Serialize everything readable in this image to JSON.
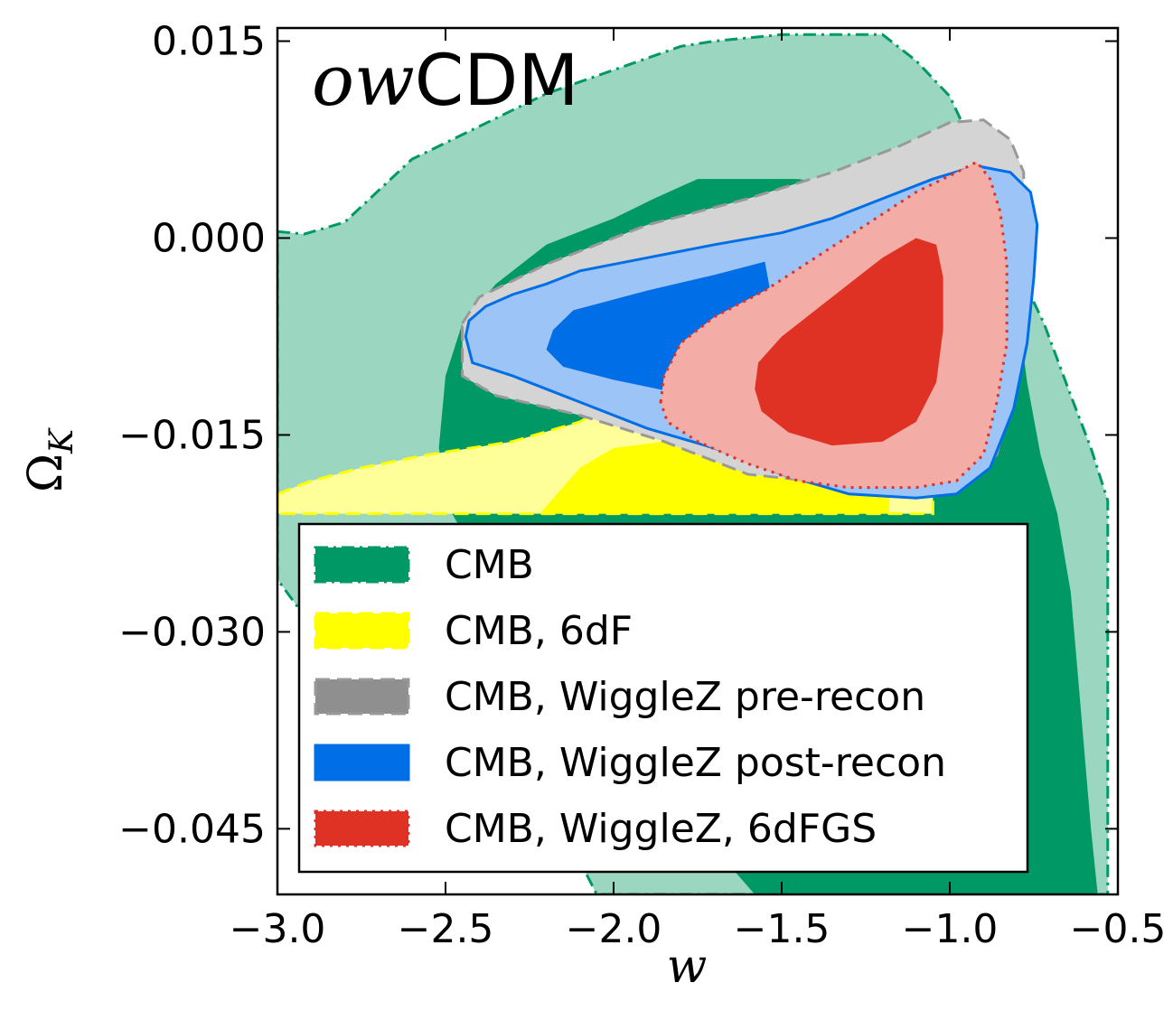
{
  "chart_data": {
    "type": "contour",
    "title_italic": "ow",
    "title_rest": "CDM",
    "xlabel": "w",
    "ylabel_main": "Ω",
    "ylabel_sub": "K",
    "xlim": [
      -3.0,
      -0.5
    ],
    "ylim": [
      -0.05,
      0.016
    ],
    "x_ticks": [
      -3.0,
      -2.5,
      -2.0,
      -1.5,
      -1.0,
      -0.5
    ],
    "x_tick_labels": [
      "−3.0",
      "−2.5",
      "−2.0",
      "−1.5",
      "−1.0",
      "−0.5"
    ],
    "y_ticks": [
      0.015,
      0.0,
      -0.015,
      -0.03,
      -0.045
    ],
    "y_tick_labels": [
      "0.015",
      "0.000",
      "−0.015",
      "−0.030",
      "−0.045"
    ],
    "grid": false,
    "legend_position": "lower-center",
    "series": [
      {
        "name": "CMB",
        "fill_outer": "#9bd6c1",
        "fill_inner": "#009966",
        "edge": "#009966",
        "linestyle": "dashdot",
        "outer": [
          [
            -3.0,
            0.0005
          ],
          [
            -2.92,
            0.0003
          ],
          [
            -2.8,
            0.0012
          ],
          [
            -2.6,
            0.006
          ],
          [
            -2.4,
            0.0085
          ],
          [
            -2.2,
            0.011
          ],
          [
            -2.0,
            0.0128
          ],
          [
            -1.8,
            0.0146
          ],
          [
            -1.7,
            0.015
          ],
          [
            -1.5,
            0.0155
          ],
          [
            -1.3,
            0.0155
          ],
          [
            -1.2,
            0.0155
          ],
          [
            -1.1,
            0.0135
          ],
          [
            -1.0,
            0.0108
          ],
          [
            -0.9,
            0.0053
          ],
          [
            -0.86,
            0.003
          ],
          [
            -0.8,
            -0.0022
          ],
          [
            -0.72,
            -0.0065
          ],
          [
            -0.64,
            -0.012
          ],
          [
            -0.58,
            -0.016
          ],
          [
            -0.53,
            -0.02
          ],
          [
            -0.53,
            -0.05
          ],
          [
            -2.05,
            -0.05
          ],
          [
            -2.1,
            -0.0475
          ],
          [
            -2.45,
            -0.0415
          ],
          [
            -2.8,
            -0.033
          ],
          [
            -3.0,
            -0.026
          ]
        ],
        "inner": [
          [
            -2.5,
            -0.0105
          ],
          [
            -2.45,
            -0.0065
          ],
          [
            -2.35,
            -0.0035
          ],
          [
            -2.2,
            -0.0005
          ],
          [
            -2.0,
            0.0015
          ],
          [
            -1.88,
            0.003
          ],
          [
            -1.75,
            0.0045
          ],
          [
            -1.6,
            0.0045
          ],
          [
            -1.45,
            0.0045
          ],
          [
            -1.3,
            0.0038
          ],
          [
            -1.15,
            0.0045
          ],
          [
            -1.0,
            0.0045
          ],
          [
            -0.9,
            0.0035
          ],
          [
            -0.83,
            0.001
          ],
          [
            -0.8,
            -0.005
          ],
          [
            -0.77,
            -0.011
          ],
          [
            -0.73,
            -0.0165
          ],
          [
            -0.68,
            -0.021
          ],
          [
            -0.64,
            -0.027
          ],
          [
            -0.62,
            -0.033
          ],
          [
            -0.6,
            -0.039
          ],
          [
            -0.58,
            -0.045
          ],
          [
            -0.56,
            -0.05
          ],
          [
            -1.58,
            -0.05
          ],
          [
            -1.75,
            -0.045
          ],
          [
            -1.95,
            -0.039
          ],
          [
            -2.15,
            -0.033
          ],
          [
            -2.35,
            -0.027
          ],
          [
            -2.48,
            -0.021
          ],
          [
            -2.52,
            -0.016
          ]
        ]
      },
      {
        "name": "CMB, 6dF",
        "fill_outer": "#ffff99",
        "fill_inner": "#ffff00",
        "edge": "#ffff00",
        "linestyle": "dashed",
        "outer": [
          [
            -3.0,
            -0.0195
          ],
          [
            -2.9,
            -0.0185
          ],
          [
            -2.75,
            -0.0175
          ],
          [
            -2.55,
            -0.0165
          ],
          [
            -2.3,
            -0.0155
          ],
          [
            -2.1,
            -0.014
          ],
          [
            -2.0,
            -0.0125
          ],
          [
            -1.9,
            -0.0145
          ],
          [
            -1.65,
            -0.0165
          ],
          [
            -1.4,
            -0.0175
          ],
          [
            -1.2,
            -0.0185
          ],
          [
            -1.05,
            -0.0195
          ],
          [
            -1.05,
            -0.021
          ],
          [
            -3.0,
            -0.021
          ]
        ],
        "inner": [
          [
            -2.22,
            -0.021
          ],
          [
            -2.1,
            -0.0175
          ],
          [
            -2.0,
            -0.016
          ],
          [
            -1.85,
            -0.0155
          ],
          [
            -1.7,
            -0.0165
          ],
          [
            -1.5,
            -0.0175
          ],
          [
            -1.3,
            -0.0185
          ],
          [
            -1.18,
            -0.0195
          ],
          [
            -1.18,
            -0.021
          ]
        ]
      },
      {
        "name": "CMB, WiggleZ pre-recon",
        "fill_outer": "#d4d4d4",
        "fill_inner": "#8f8f8f",
        "edge": "#999999",
        "linestyle": "dashed",
        "outer": [
          [
            -2.45,
            -0.0065
          ],
          [
            -2.4,
            -0.0045
          ],
          [
            -2.2,
            -0.002
          ],
          [
            -1.9,
            0.001
          ],
          [
            -1.6,
            0.003
          ],
          [
            -1.35,
            0.005
          ],
          [
            -1.15,
            0.007
          ],
          [
            -1.0,
            0.0088
          ],
          [
            -0.9,
            0.009
          ],
          [
            -0.82,
            0.0075
          ],
          [
            -0.78,
            0.005
          ],
          [
            -0.78,
            -0.002
          ],
          [
            -0.8,
            -0.008
          ],
          [
            -0.82,
            -0.0125
          ],
          [
            -0.86,
            -0.0165
          ],
          [
            -0.92,
            -0.018
          ],
          [
            -1.05,
            -0.0185
          ],
          [
            -1.3,
            -0.0188
          ],
          [
            -1.6,
            -0.018
          ],
          [
            -1.85,
            -0.0155
          ],
          [
            -2.1,
            -0.0135
          ],
          [
            -2.35,
            -0.012
          ],
          [
            -2.45,
            -0.0105
          ]
        ],
        "inner": [
          [
            -1.85,
            -0.004
          ],
          [
            -1.7,
            -0.0005
          ],
          [
            -1.5,
            0.0005
          ],
          [
            -1.35,
            0.001
          ],
          [
            -1.3,
            -0.002
          ]
        ]
      },
      {
        "name": "CMB, WiggleZ post-recon",
        "fill_outer": "#9cc4f7",
        "fill_inner": "#006ee6",
        "edge": "#006ee6",
        "linestyle": "solid",
        "outer": [
          [
            -2.44,
            -0.0075
          ],
          [
            -2.43,
            -0.0063
          ],
          [
            -2.38,
            -0.0052
          ],
          [
            -2.3,
            -0.0043
          ],
          [
            -2.2,
            -0.0035
          ],
          [
            -2.1,
            -0.0025
          ],
          [
            -1.9,
            -0.0015
          ],
          [
            -1.7,
            -0.0005
          ],
          [
            -1.5,
            0.0004
          ],
          [
            -1.35,
            0.0015
          ],
          [
            -1.2,
            0.003
          ],
          [
            -1.05,
            0.0045
          ],
          [
            -0.92,
            0.0055
          ],
          [
            -0.82,
            0.005
          ],
          [
            -0.76,
            0.0035
          ],
          [
            -0.74,
            0.001
          ],
          [
            -0.75,
            -0.003
          ],
          [
            -0.77,
            -0.008
          ],
          [
            -0.81,
            -0.013
          ],
          [
            -0.88,
            -0.0175
          ],
          [
            -0.98,
            -0.0195
          ],
          [
            -1.1,
            -0.0198
          ],
          [
            -1.3,
            -0.0195
          ],
          [
            -1.5,
            -0.018
          ],
          [
            -1.7,
            -0.016
          ],
          [
            -1.9,
            -0.0145
          ],
          [
            -2.1,
            -0.0125
          ],
          [
            -2.3,
            -0.0105
          ],
          [
            -2.42,
            -0.0095
          ]
        ],
        "inner": [
          [
            -2.2,
            -0.0085
          ],
          [
            -2.18,
            -0.007
          ],
          [
            -2.12,
            -0.0055
          ],
          [
            -1.9,
            -0.004
          ],
          [
            -1.7,
            -0.0028
          ],
          [
            -1.55,
            -0.0018
          ],
          [
            -1.52,
            -0.006
          ],
          [
            -1.56,
            -0.0108
          ],
          [
            -1.7,
            -0.0122
          ],
          [
            -1.85,
            -0.0116
          ],
          [
            -2.0,
            -0.0108
          ],
          [
            -2.15,
            -0.0098
          ]
        ]
      },
      {
        "name": "CMB, WiggleZ, 6dFGS",
        "fill_outer": "#f3aca6",
        "fill_inner": "#e03224",
        "edge": "#e03224",
        "linestyle": "dotted",
        "outer": [
          [
            -1.86,
            -0.0125
          ],
          [
            -1.85,
            -0.0105
          ],
          [
            -1.8,
            -0.008
          ],
          [
            -1.7,
            -0.006
          ],
          [
            -1.55,
            -0.004
          ],
          [
            -1.4,
            -0.0015
          ],
          [
            -1.25,
            0.001
          ],
          [
            -1.1,
            0.0035
          ],
          [
            -0.98,
            0.005
          ],
          [
            -0.92,
            0.0058
          ],
          [
            -0.88,
            0.0045
          ],
          [
            -0.85,
            0.002
          ],
          [
            -0.83,
            -0.002
          ],
          [
            -0.83,
            -0.008
          ],
          [
            -0.86,
            -0.0125
          ],
          [
            -0.9,
            -0.0165
          ],
          [
            -0.98,
            -0.0185
          ],
          [
            -1.1,
            -0.019
          ],
          [
            -1.3,
            -0.019
          ],
          [
            -1.45,
            -0.0185
          ],
          [
            -1.6,
            -0.0172
          ],
          [
            -1.75,
            -0.0155
          ],
          [
            -1.84,
            -0.014
          ]
        ],
        "inner": [
          [
            -1.58,
            -0.0115
          ],
          [
            -1.57,
            -0.0095
          ],
          [
            -1.5,
            -0.0075
          ],
          [
            -1.4,
            -0.0055
          ],
          [
            -1.3,
            -0.0035
          ],
          [
            -1.2,
            -0.0015
          ],
          [
            -1.1,
            0.0
          ],
          [
            -1.04,
            -0.0005
          ],
          [
            -1.02,
            -0.003
          ],
          [
            -1.02,
            -0.007
          ],
          [
            -1.04,
            -0.011
          ],
          [
            -1.1,
            -0.014
          ],
          [
            -1.2,
            -0.0155
          ],
          [
            -1.35,
            -0.0158
          ],
          [
            -1.48,
            -0.0148
          ],
          [
            -1.56,
            -0.0132
          ]
        ]
      }
    ]
  }
}
